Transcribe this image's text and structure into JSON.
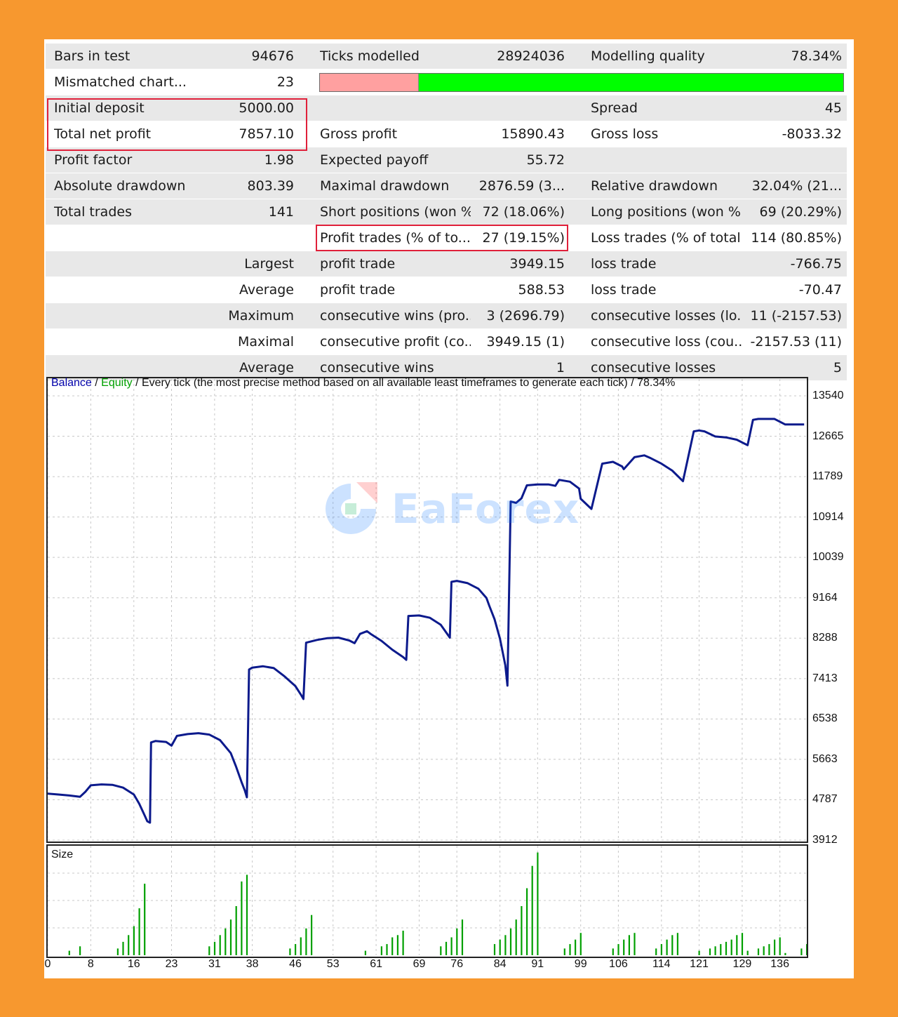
{
  "stats": {
    "bars_in_test": {
      "label": "Bars in test",
      "value": "94676"
    },
    "ticks_modelled": {
      "label": "Ticks modelled",
      "value": "28924036"
    },
    "modelling_quality": {
      "label": "Modelling quality",
      "value": "78.34%",
      "fraction": 0.7834
    },
    "mismatched": {
      "label": "Mismatched chart...",
      "value": "23"
    },
    "quality_bar": {
      "bad_fraction": 0.188,
      "bad_color": "#ffa0a0",
      "good_color": "#00ff00"
    },
    "initial_deposit": {
      "label": "Initial deposit",
      "value": "5000.00"
    },
    "spread": {
      "label": "Spread",
      "value": "45"
    },
    "total_net_profit": {
      "label": "Total net profit",
      "value": "7857.10"
    },
    "gross_profit": {
      "label": "Gross profit",
      "value": "15890.43"
    },
    "gross_loss": {
      "label": "Gross loss",
      "value": "-8033.32"
    },
    "profit_factor": {
      "label": "Profit factor",
      "value": "1.98"
    },
    "expected_payoff": {
      "label": "Expected payoff",
      "value": "55.72"
    },
    "absolute_drawdown": {
      "label": "Absolute drawdown",
      "value": "803.39"
    },
    "maximal_drawdown": {
      "label": "Maximal drawdown",
      "value": "2876.59 (3..."
    },
    "relative_drawdown": {
      "label": "Relative drawdown",
      "value": "32.04% (21..."
    },
    "total_trades": {
      "label": "Total trades",
      "value": "141"
    },
    "short_positions": {
      "label": "Short positions (won %)",
      "value": "72 (18.06%)"
    },
    "long_positions": {
      "label": "Long positions (won %)",
      "value": "69 (20.29%)"
    },
    "profit_trades": {
      "label": "Profit trades (% of to...",
      "value": "27 (19.15%)"
    },
    "loss_trades": {
      "label": "Loss trades (% of total)",
      "value": "114 (80.85%)"
    },
    "largest": {
      "label": "Largest",
      "profit_label": "profit trade",
      "profit_value": "3949.15",
      "loss_label": "loss trade",
      "loss_value": "-766.75"
    },
    "average": {
      "label": "Average",
      "profit_label": "profit trade",
      "profit_value": "588.53",
      "loss_label": "loss trade",
      "loss_value": "-70.47"
    },
    "maximum": {
      "label": "Maximum",
      "wins_label": "consecutive wins (pro...",
      "wins_value": "3 (2696.79)",
      "losses_label": "consecutive losses (lo...",
      "losses_value": "11 (-2157.53)"
    },
    "maximal": {
      "label": "Maximal",
      "profit_label": "consecutive profit (co...",
      "profit_value": "3949.15 (1)",
      "loss_label": "consecutive loss (cou...",
      "loss_value": "-2157.53 (11)"
    },
    "average_consecutive": {
      "label": "Average",
      "wins_label": "consecutive wins",
      "wins_value": "1",
      "losses_label": "consecutive losses",
      "losses_value": "5"
    }
  },
  "watermark": {
    "text": "EaForex"
  },
  "chart_data": [
    {
      "type": "line",
      "title_parts": {
        "balance": "Balance",
        "sep1": " / ",
        "equity": "Equity",
        "rest": " / Every tick (the most precise method based on all available least timeframes to generate each tick) / 78.34%"
      },
      "colors": {
        "balance": "#0000aa",
        "equity": "#00a000",
        "line": "#0c1a8c"
      },
      "ylim": [
        3912,
        13540
      ],
      "yticks": [
        "13540",
        "12665",
        "11789",
        "10914",
        "10039",
        "9164",
        "8288",
        "7413",
        "6538",
        "5663",
        "4787",
        "3912"
      ],
      "xlim": [
        0,
        141
      ],
      "grid": true,
      "series": [
        {
          "x": [
            0,
            2,
            4,
            6,
            7,
            8,
            10,
            12,
            14,
            16,
            17,
            18,
            18.5,
            19,
            19.2,
            20,
            22,
            23,
            24,
            26,
            28,
            30,
            32,
            34,
            35,
            36,
            36.6,
            37,
            37.4,
            38,
            40,
            42,
            44,
            46,
            47,
            47.5,
            48,
            50,
            52,
            54,
            56,
            57,
            58,
            59.3,
            60,
            62,
            64,
            66,
            66.6,
            67,
            69,
            71,
            73,
            74.7,
            75,
            76,
            78,
            80,
            81.5,
            82,
            83,
            84,
            85,
            85.4,
            86,
            87,
            88,
            89,
            91,
            93,
            94.3,
            95,
            97,
            98.7,
            99,
            101,
            103,
            105,
            106.7,
            107,
            109,
            110.8,
            112,
            114,
            116,
            118,
            120,
            121,
            122,
            124,
            126,
            128,
            130,
            131,
            132,
            135,
            137,
            140.5
          ],
          "y": [
            4920,
            4900,
            4880,
            4850,
            4960,
            5100,
            5120,
            5110,
            5050,
            4900,
            4700,
            4450,
            4320,
            4290,
            6030,
            6060,
            6040,
            5960,
            6170,
            6210,
            6230,
            6200,
            6080,
            5800,
            5500,
            5170,
            4990,
            4840,
            7610,
            7650,
            7680,
            7640,
            7460,
            7250,
            7070,
            6970,
            8190,
            8250,
            8290,
            8300,
            8240,
            8180,
            8380,
            8440,
            8380,
            8230,
            8040,
            7880,
            7820,
            8770,
            8780,
            8730,
            8580,
            8300,
            9510,
            9530,
            9480,
            9360,
            9160,
            9000,
            8700,
            8280,
            7700,
            7260,
            11250,
            11220,
            11320,
            11600,
            11620,
            11620,
            11590,
            11720,
            11680,
            11530,
            11310,
            11090,
            12070,
            12110,
            12010,
            11950,
            12210,
            12250,
            12190,
            12070,
            11920,
            11690,
            12770,
            12790,
            12770,
            12660,
            12640,
            12590,
            12470,
            13020,
            13040,
            13040,
            12920,
            12920
          ]
        }
      ]
    },
    {
      "type": "bar",
      "title": "Size",
      "color": "#00a000",
      "x": [
        4,
        6,
        13,
        14,
        15,
        16,
        17,
        18,
        30,
        31,
        32,
        33,
        34,
        35,
        36,
        37,
        45,
        46,
        47,
        48,
        49,
        59,
        62,
        63,
        64,
        65,
        66,
        73,
        74,
        75,
        76,
        77,
        83,
        84,
        85,
        86,
        87,
        88,
        89,
        90,
        91,
        96,
        97,
        98,
        99,
        105,
        106,
        107,
        108,
        109,
        113,
        114,
        115,
        116,
        117,
        121,
        123,
        124,
        125,
        126,
        127,
        128,
        129,
        130,
        132,
        133,
        134,
        135,
        136,
        137,
        140,
        141
      ],
      "values": [
        0.2,
        0.4,
        0.3,
        0.6,
        0.9,
        1.3,
        2.1,
        3.2,
        0.4,
        0.6,
        0.9,
        1.2,
        1.6,
        2.2,
        3.3,
        3.6,
        0.3,
        0.5,
        0.8,
        1.2,
        1.8,
        0.2,
        0.4,
        0.5,
        0.8,
        0.9,
        1.1,
        0.4,
        0.6,
        0.8,
        1.2,
        1.6,
        0.5,
        0.7,
        0.9,
        1.2,
        1.6,
        2.2,
        3.0,
        4.0,
        4.6,
        0.3,
        0.5,
        0.7,
        1.0,
        0.3,
        0.5,
        0.7,
        0.9,
        1.0,
        0.3,
        0.5,
        0.7,
        0.9,
        1.0,
        0.2,
        0.3,
        0.4,
        0.5,
        0.6,
        0.7,
        0.9,
        1.0,
        0.2,
        0.3,
        0.4,
        0.5,
        0.7,
        0.8,
        0.1,
        0.3,
        0.5
      ],
      "ylim": [
        0,
        4.9
      ],
      "xticks": [
        "0",
        "8",
        "16",
        "23",
        "31",
        "38",
        "46",
        "53",
        "61",
        "69",
        "76",
        "84",
        "91",
        "99",
        "106",
        "114",
        "121",
        "129",
        "136"
      ],
      "xtick_values": [
        0,
        8,
        16,
        23,
        31,
        38,
        46,
        53,
        61,
        69,
        76,
        84,
        91,
        99,
        106,
        114,
        121,
        129,
        136
      ],
      "grid": true
    }
  ]
}
